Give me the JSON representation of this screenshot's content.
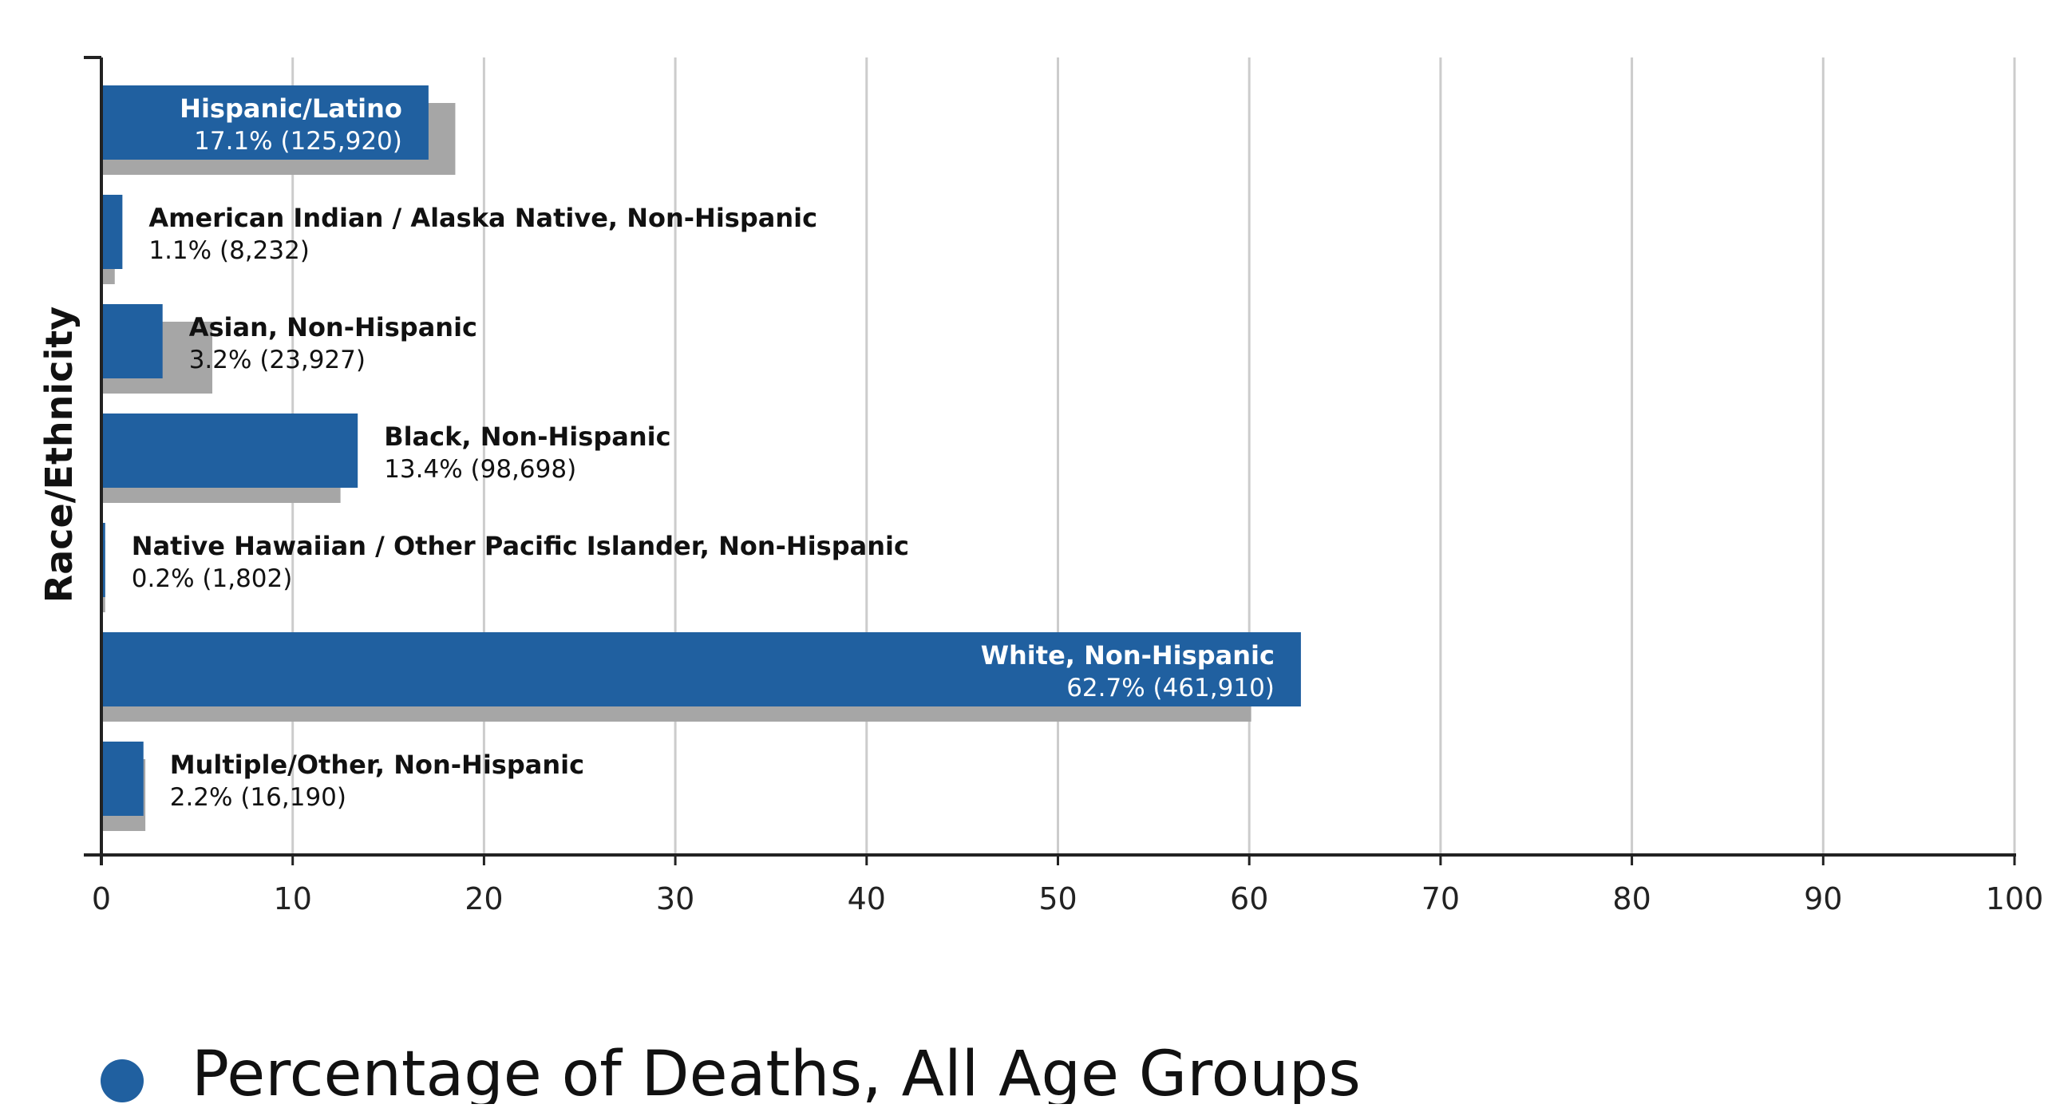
{
  "chart_data": {
    "type": "bar",
    "orientation": "horizontal",
    "ylabel": "Race/Ethnicity",
    "xlabel": "",
    "xlim": [
      0,
      100
    ],
    "x_ticks": [
      0,
      10,
      20,
      30,
      40,
      50,
      60,
      70,
      80,
      90,
      100
    ],
    "grid": true,
    "legend_placement": "bottom-left",
    "categories": [
      "Hispanic/Latino",
      "American Indian / Alaska Native, Non-Hispanic",
      "Asian, Non-Hispanic",
      "Black, Non-Hispanic",
      "Native Hawaiian / Other Pacific Islander, Non-Hispanic",
      "White, Non-Hispanic",
      "Multiple/Other, Non-Hispanic"
    ],
    "series": [
      {
        "name": "Percentage of Deaths, All Age Groups",
        "color": "#2060a0",
        "values": [
          17.1,
          1.1,
          3.2,
          13.4,
          0.2,
          62.7,
          2.2
        ]
      },
      {
        "color": "#a6a6a6",
        "values": [
          18.5,
          0.7,
          5.8,
          12.5,
          0.2,
          60.1,
          2.3
        ]
      }
    ],
    "data_labels": [
      "17.1% (125,920)",
      "1.1% (8,232)",
      "3.2% (23,927)",
      "13.4% (98,698)",
      "0.2% (1,802)",
      "62.7% (461,910)",
      "2.2% (16,190)"
    ]
  }
}
